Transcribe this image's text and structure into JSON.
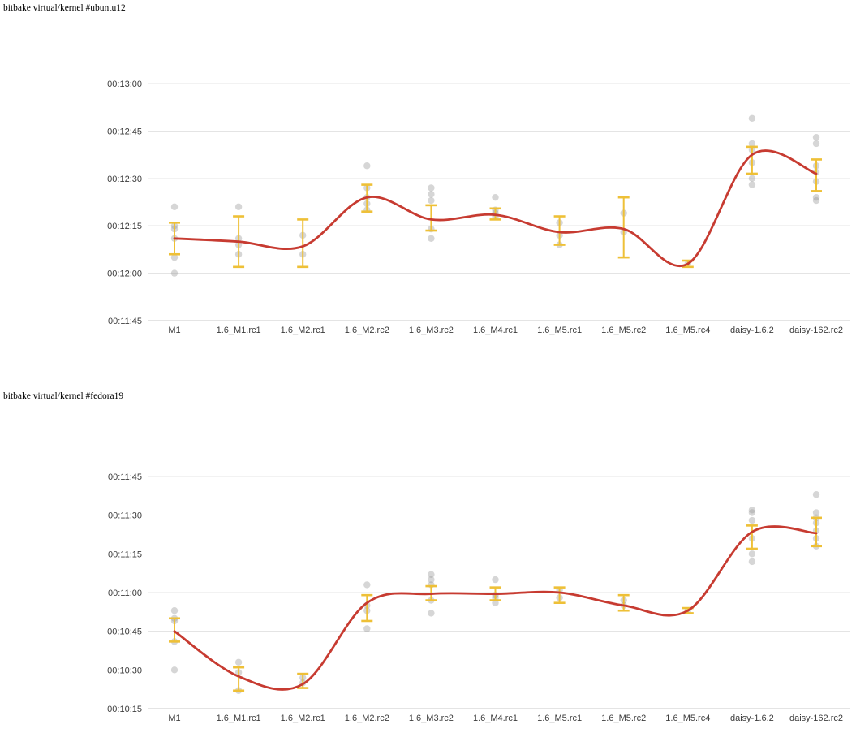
{
  "page": {
    "background": "#ffffff"
  },
  "colors": {
    "trend_line": "#c73b31",
    "error_bar": "#eec037",
    "scatter_dot": "#999999",
    "gridline": "#e4e4e4",
    "axis_line": "#c9c9c9",
    "tick_label": "#3c3c3c",
    "title_text": "#000000"
  },
  "chart_data": [
    {
      "id": "ubuntu12",
      "type": "scatter",
      "subtype": "scatter+errorbar+smoothed-trendline",
      "title": "bitbake virtual/kernel #ubuntu12",
      "xlabel": "",
      "ylabel": "",
      "grid": true,
      "legend": "none",
      "x_categories": [
        "M1",
        "1.6_M1.rc1",
        "1.6_M2.rc1",
        "1.6_M2.rc2",
        "1.6_M3.rc2",
        "1.6_M4.rc1",
        "1.6_M5.rc1",
        "1.6_M5.rc2",
        "1.6_M5.rc4",
        "daisy-1.6.2",
        "daisy-162.rc2"
      ],
      "y_tick_labels": [
        "00:13:00",
        "00:12:45",
        "00:12:30",
        "00:12:15",
        "00:12:00",
        "00:11:45"
      ],
      "y_tick_seconds": [
        780,
        765,
        750,
        735,
        720,
        705
      ],
      "ylim_seconds": [
        705,
        780
      ],
      "series": [
        {
          "name": "trend_seconds",
          "values": [
            731,
            730,
            728.5,
            744,
            737,
            738.5,
            733,
            734,
            723,
            757.5,
            751.5
          ]
        },
        {
          "name": "error_low_seconds",
          "values": [
            726,
            722,
            722,
            739.5,
            733.5,
            737,
            729,
            725,
            722,
            751.5,
            746
          ]
        },
        {
          "name": "error_high_seconds",
          "values": [
            736,
            738,
            737,
            748,
            741.5,
            740.5,
            738,
            744,
            724,
            760,
            756
          ]
        }
      ],
      "scatter_seconds": [
        [
          741,
          735,
          734,
          731,
          725,
          720
        ],
        [
          741,
          731,
          729,
          726
        ],
        [
          732,
          726
        ],
        [
          754,
          747,
          744,
          742,
          740
        ],
        [
          747,
          745,
          743,
          734,
          731
        ],
        [
          744,
          740,
          739,
          738
        ],
        [
          736,
          732,
          729
        ],
        [
          739,
          733
        ],
        [
          723
        ],
        [
          769,
          761,
          759,
          755,
          750,
          748
        ],
        [
          763,
          761,
          754,
          752,
          749,
          744,
          743
        ]
      ]
    },
    {
      "id": "fedora19",
      "type": "scatter",
      "subtype": "scatter+errorbar+smoothed-trendline",
      "title": "bitbake virtual/kernel #fedora19",
      "xlabel": "",
      "ylabel": "",
      "grid": true,
      "legend": "none",
      "x_categories": [
        "M1",
        "1.6_M1.rc1",
        "1.6_M2.rc1",
        "1.6_M2.rc2",
        "1.6_M3.rc2",
        "1.6_M4.rc1",
        "1.6_M5.rc1",
        "1.6_M5.rc2",
        "1.6_M5.rc4",
        "daisy-1.6.2",
        "daisy-162.rc2"
      ],
      "y_tick_labels": [
        "00:11:45",
        "00:11:30",
        "00:11:15",
        "00:11:00",
        "00:10:45",
        "00:10:30",
        "00:10:15"
      ],
      "y_tick_seconds": [
        705,
        690,
        675,
        660,
        645,
        630,
        615
      ],
      "ylim_seconds": [
        615,
        705
      ],
      "series": [
        {
          "name": "trend_seconds",
          "values": [
            645,
            627.5,
            624.5,
            656,
            659.5,
            659.5,
            660,
            655,
            653,
            683.5,
            683
          ]
        },
        {
          "name": "error_low_seconds",
          "values": [
            641,
            622,
            623,
            649,
            657,
            657,
            656,
            653,
            652,
            677,
            678
          ]
        },
        {
          "name": "error_high_seconds",
          "values": [
            650,
            631,
            628.5,
            659,
            662.5,
            662,
            662,
            659,
            654,
            686,
            689
          ]
        }
      ],
      "scatter_seconds": [
        [
          653,
          650,
          649,
          641,
          630
        ],
        [
          633,
          629,
          622
        ],
        [
          627,
          625
        ],
        [
          663,
          655,
          653,
          646
        ],
        [
          667,
          665,
          663,
          657,
          652
        ],
        [
          665,
          659,
          658,
          656
        ],
        [
          661,
          658
        ],
        [
          657,
          655
        ],
        [
          653
        ],
        [
          692,
          691,
          688,
          681,
          675,
          672
        ],
        [
          698,
          691,
          689,
          687,
          684,
          681,
          678
        ]
      ]
    }
  ]
}
